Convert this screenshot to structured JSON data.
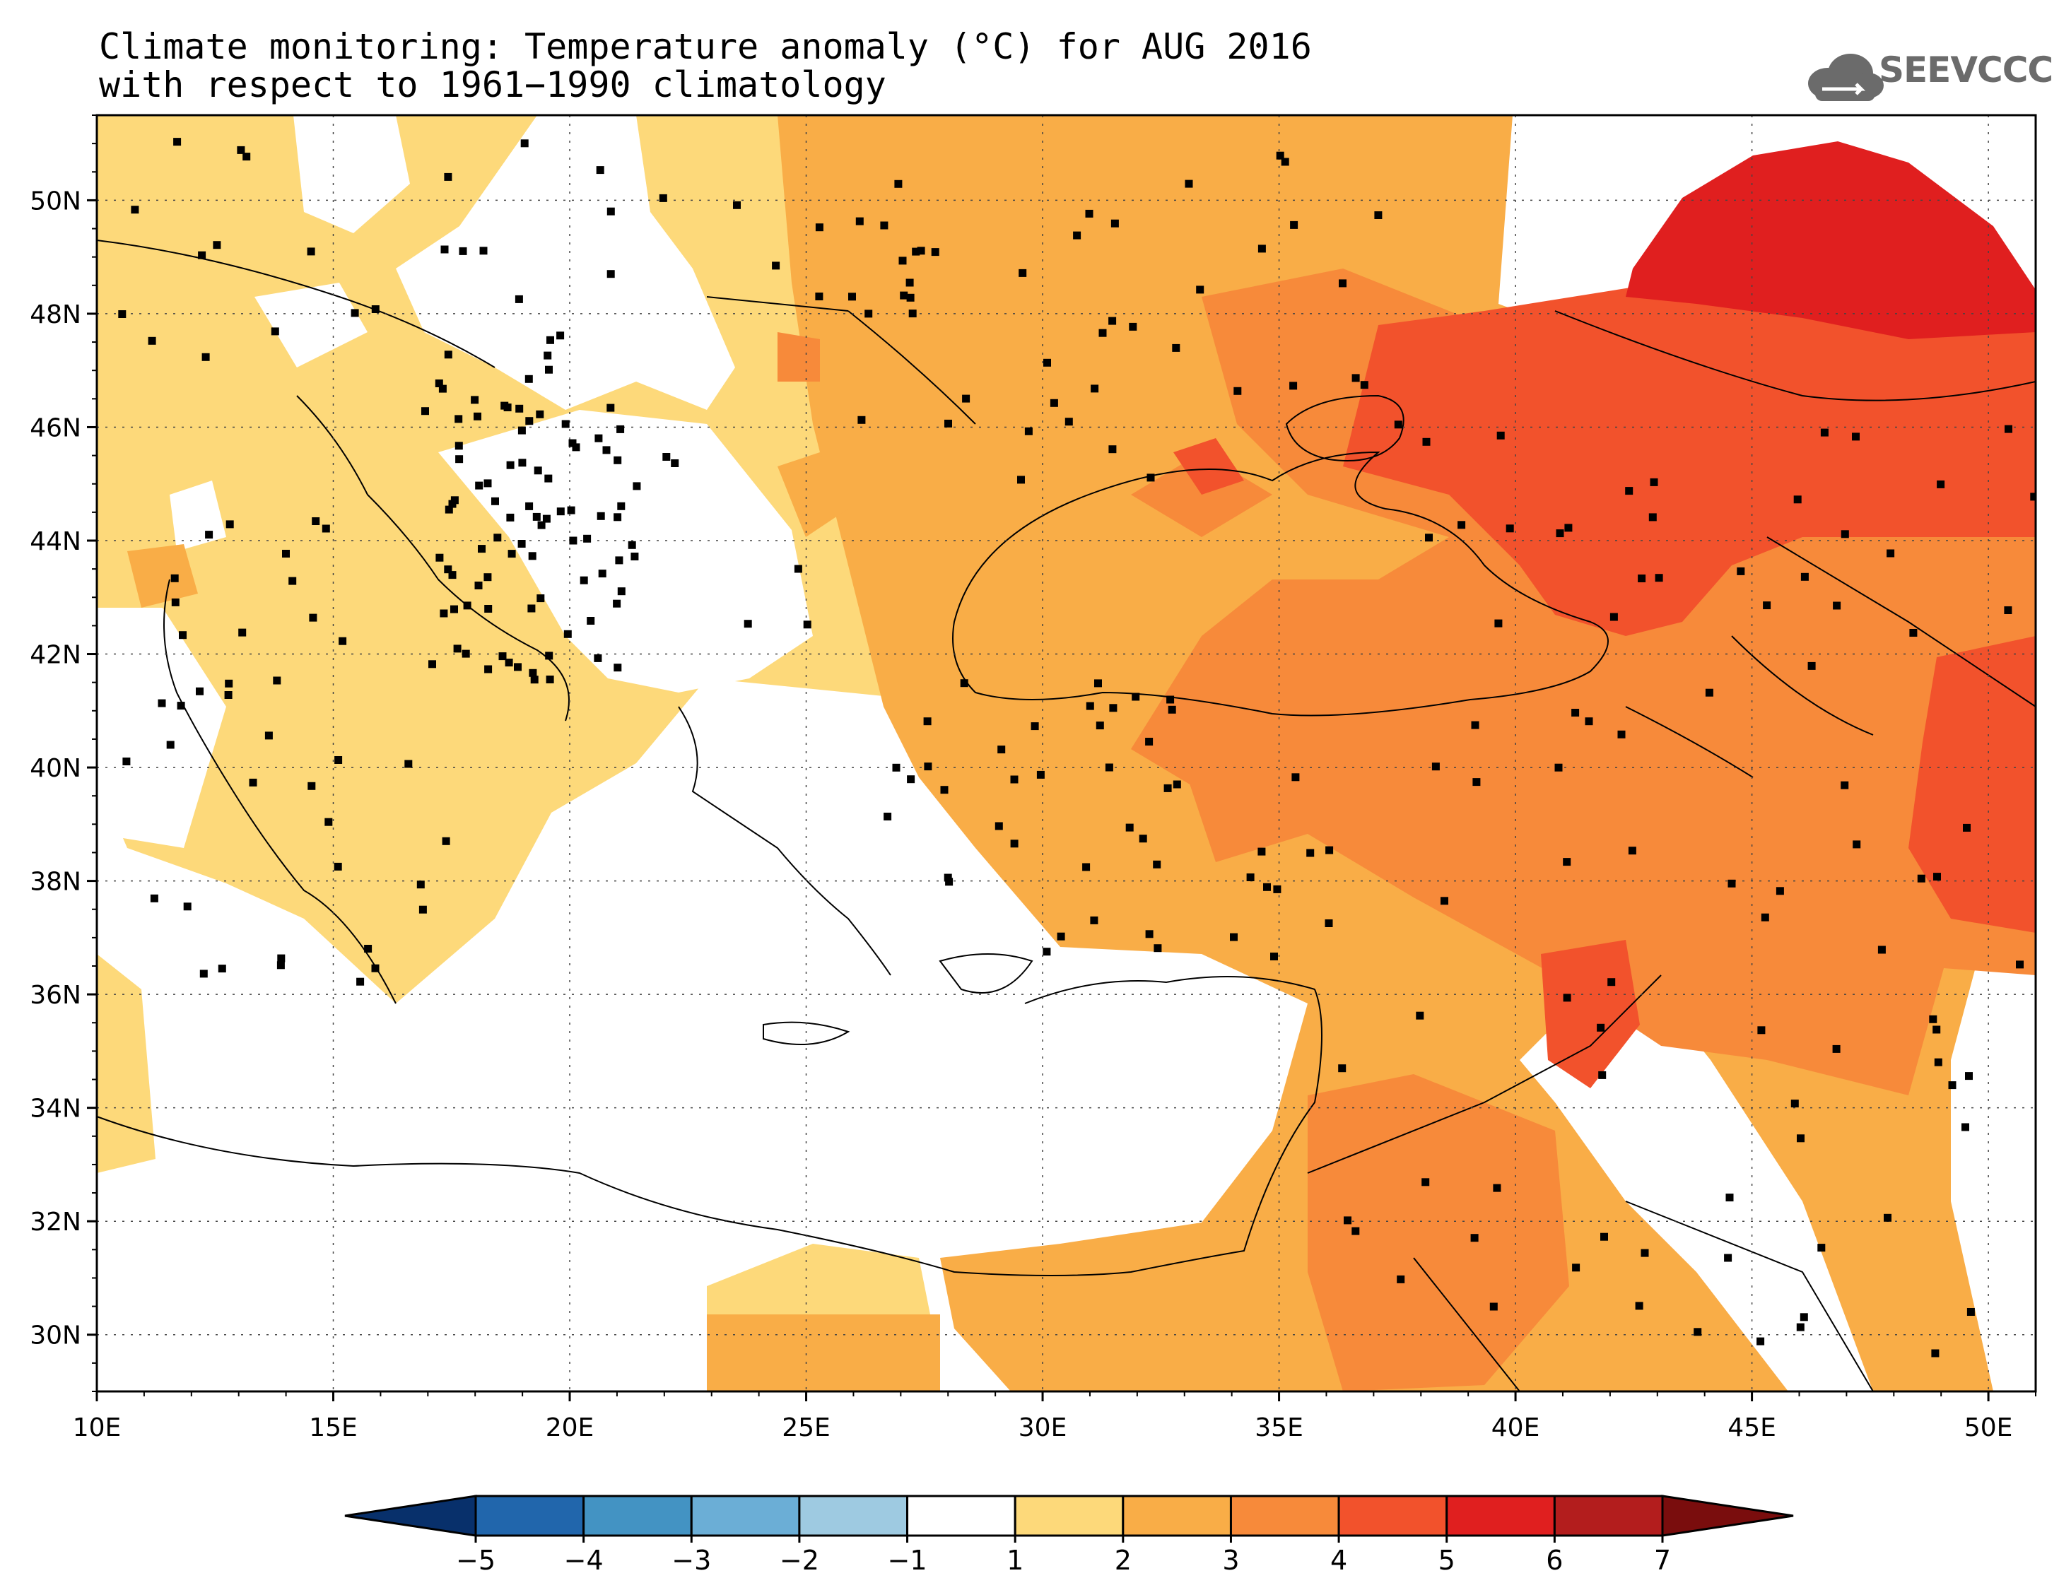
{
  "title": {
    "line1": "Climate monitoring: Temperature anomaly (°C) for AUG 2016",
    "line2": "with respect to 1961−1990 climatology"
  },
  "logo": {
    "text": "SEEVCCC",
    "icon": "cloud-icon"
  },
  "map": {
    "lon_range": [
      10,
      51
    ],
    "lat_range": [
      29,
      51.5
    ],
    "lat_ticks": [
      "30N",
      "32N",
      "34N",
      "36N",
      "38N",
      "40N",
      "42N",
      "44N",
      "46N",
      "48N",
      "50N"
    ],
    "lat_values": [
      30,
      32,
      34,
      36,
      38,
      40,
      42,
      44,
      46,
      48,
      50
    ],
    "lon_ticks": [
      "10E",
      "15E",
      "20E",
      "25E",
      "30E",
      "35E",
      "40E",
      "45E",
      "50E"
    ],
    "lon_values": [
      10,
      15,
      20,
      25,
      30,
      35,
      40,
      45,
      50
    ],
    "grid": true
  },
  "colorbar": {
    "labels": [
      "−5",
      "−4",
      "−3",
      "−2",
      "−1",
      "1",
      "2",
      "3",
      "4",
      "5",
      "6",
      "7"
    ],
    "colors": [
      "#08306b",
      "#2166ac",
      "#4393c3",
      "#6baed6",
      "#9ecae1",
      "#ffffff",
      "#fdd97a",
      "#f9ad47",
      "#f78a3a",
      "#f2522c",
      "#e01f1f",
      "#b31d1d",
      "#7a0d0d"
    ]
  },
  "colors": {
    "c1": "#fdd97a",
    "c2": "#f9ad47",
    "c3": "#f78a3a",
    "c4": "#f2522c",
    "c5": "#e01f1f"
  }
}
